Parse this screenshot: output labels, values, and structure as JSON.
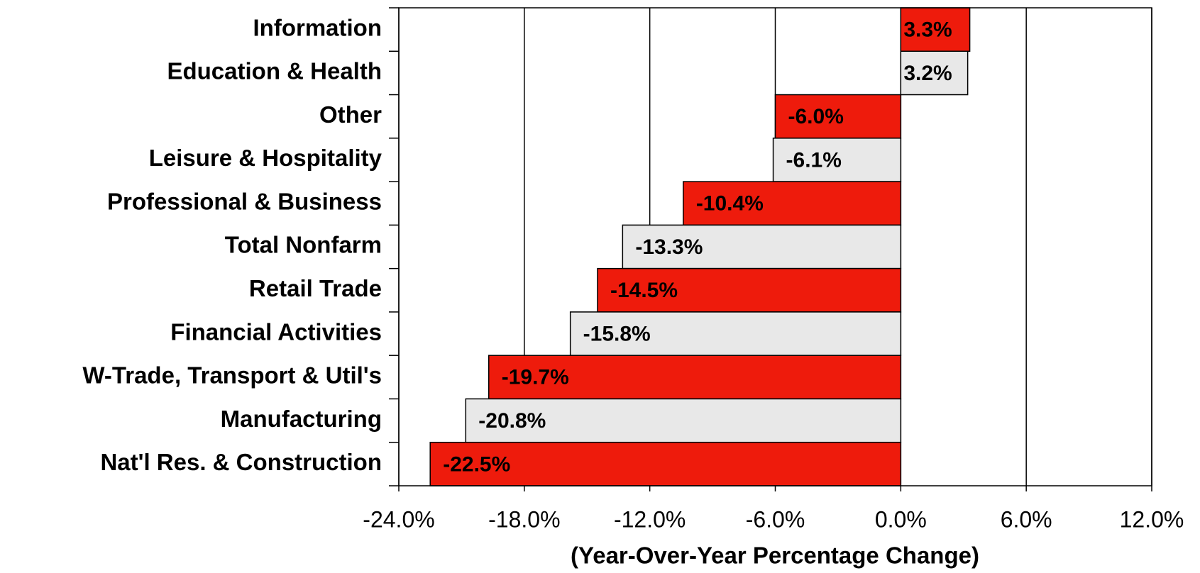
{
  "chart_data": {
    "type": "bar",
    "orientation": "horizontal",
    "x_label": "(Year-Over-Year Percentage Change)",
    "categories": [
      "Information",
      "Education & Health",
      "Other",
      "Leisure & Hospitality",
      "Professional & Business",
      "Total Nonfarm",
      "Retail Trade",
      "Financial Activities",
      "W-Trade, Transport & Util's",
      "Manufacturing",
      "Nat'l Res. & Construction"
    ],
    "values": [
      3.3,
      3.2,
      -6.0,
      -6.1,
      -10.4,
      -13.3,
      -14.5,
      -15.8,
      -19.7,
      -20.8,
      -22.5
    ],
    "value_labels": [
      "3.3%",
      "3.2%",
      "-6.0%",
      "-6.1%",
      "-10.4%",
      "-13.3%",
      "-14.5%",
      "-15.8%",
      "-19.7%",
      "-20.8%",
      "-22.5%"
    ],
    "colors": [
      "#ee1b0c",
      "#e8e8e8",
      "#ee1b0c",
      "#e8e8e8",
      "#ee1b0c",
      "#e8e8e8",
      "#ee1b0c",
      "#e8e8e8",
      "#ee1b0c",
      "#e8e8e8",
      "#ee1b0c"
    ],
    "xlim": [
      -24,
      12
    ],
    "xticks": [
      {
        "value": -24,
        "label": "-24.0%"
      },
      {
        "value": -18,
        "label": "-18.0%"
      },
      {
        "value": -12,
        "label": "-12.0%"
      },
      {
        "value": -6,
        "label": "-6.0%"
      },
      {
        "value": 0,
        "label": "0.0%"
      },
      {
        "value": 6,
        "label": "6.0%"
      },
      {
        "value": 12,
        "label": "12.0%"
      }
    ],
    "grid": true
  }
}
